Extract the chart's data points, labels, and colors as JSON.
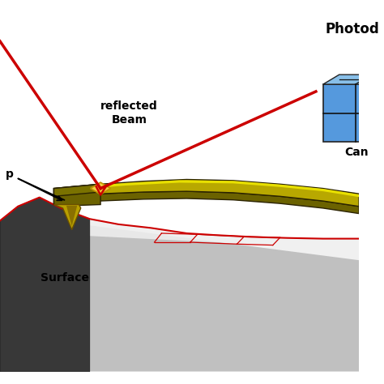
{
  "background_color": "#ffffff",
  "text_reflected_beam": "reflected\nBeam",
  "text_surface": "Surface",
  "text_cantilever": "Can",
  "text_photod": "Photod",
  "text_tip": "p",
  "beam_color": "#cc0000",
  "cant_dark": "#6b6200",
  "cant_mid": "#b8a800",
  "cant_bright": "#d8cc00",
  "cant_highlight": "#e8e000",
  "cant_edge": "#2a2200",
  "surface_bg": "#c8c8c8",
  "surface_light": "#e0e0e0",
  "surface_dark": "#404040",
  "tip_color": "#b8a000",
  "tip_dark": "#6a5000",
  "pd_front": "#5599dd",
  "pd_top": "#88bfe8",
  "pd_side": "#3366aa",
  "pd_edge": "#222222",
  "laser_spot": "#f0d040",
  "laser_spot_dark": "#c09000"
}
